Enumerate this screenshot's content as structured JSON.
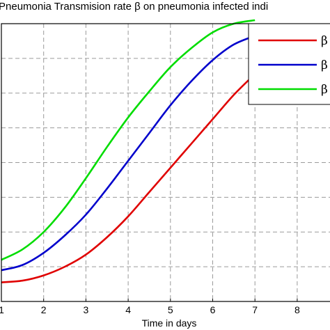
{
  "chart_data": {
    "type": "line",
    "title": "Pneumonia Transmision  rate β on pneumonia infected indi",
    "xlabel": "Time in days",
    "ylabel": "",
    "xlim": [
      1,
      9
    ],
    "ylim": [
      0,
      8
    ],
    "x_ticks": [
      "1",
      "2",
      "3",
      "4",
      "5",
      "6",
      "7",
      "8"
    ],
    "grid": true,
    "legend_position": "top-right",
    "x": [
      1,
      1.5,
      2,
      2.5,
      3,
      3.5,
      4,
      4.5,
      5,
      5.5,
      6,
      6.5,
      7
    ],
    "series": [
      {
        "name": "β",
        "color": "#e00000",
        "values": [
          0.55,
          0.6,
          0.75,
          1.0,
          1.35,
          1.85,
          2.45,
          3.15,
          3.85,
          4.55,
          5.25,
          5.95,
          6.55
        ]
      },
      {
        "name": "β",
        "color": "#0000cc",
        "values": [
          0.9,
          1.05,
          1.4,
          1.9,
          2.5,
          3.25,
          4.05,
          4.85,
          5.65,
          6.35,
          6.95,
          7.4,
          7.65
        ]
      },
      {
        "name": "β",
        "color": "#00dd00",
        "values": [
          1.2,
          1.5,
          2.0,
          2.7,
          3.55,
          4.45,
          5.3,
          6.05,
          6.75,
          7.3,
          7.75,
          8.0,
          8.1
        ]
      }
    ]
  }
}
